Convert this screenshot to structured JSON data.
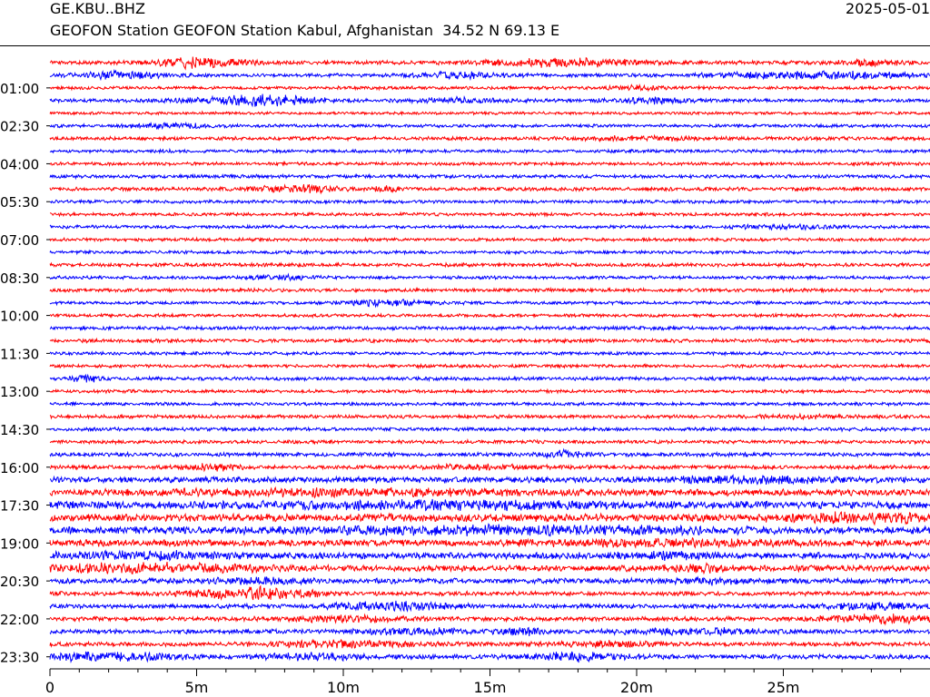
{
  "header": {
    "station_code": "GE.KBU..BHZ",
    "date": "2025-05-01",
    "station_description": "GEOFON Station GEOFON Station Kabul, Afghanistan  34.52 N 69.13 E"
  },
  "chart_data": {
    "type": "line",
    "subtype": "helicorder",
    "x_unit": "minutes",
    "xlim": [
      0,
      30
    ],
    "x_ticks": [
      {
        "value": 0,
        "label": "0"
      },
      {
        "value": 5,
        "label": "5m"
      },
      {
        "value": 10,
        "label": "10m"
      },
      {
        "value": 15,
        "label": "15m"
      },
      {
        "value": 20,
        "label": "20m"
      },
      {
        "value": 25,
        "label": "25m"
      }
    ],
    "x_minor_tick_step": 1,
    "row_interval_minutes": 30,
    "row_count": 48,
    "y_tick_labels": [
      "01:00",
      "02:30",
      "04:00",
      "05:30",
      "07:00",
      "08:30",
      "10:00",
      "11:30",
      "13:00",
      "14:30",
      "16:00",
      "17:30",
      "19:00",
      "20:30",
      "22:00",
      "23:30"
    ],
    "y_tick_every_rows": 3,
    "y_tick_first_row": 2,
    "trace_colors": [
      "#ff0000",
      "#0000ff"
    ],
    "rows_amplitude": [
      {
        "base": 0.55,
        "bursts": [
          [
            5.0,
            1.5,
            1.2
          ],
          [
            17.5,
            2.4,
            1.0
          ],
          [
            28.0,
            1.0,
            0.6
          ]
        ]
      },
      {
        "base": 0.5,
        "bursts": [
          [
            2.5,
            1.5,
            0.8
          ],
          [
            14.0,
            1.5,
            0.7
          ],
          [
            26.0,
            3.0,
            0.9
          ]
        ]
      },
      {
        "base": 0.45,
        "bursts": [
          [
            20.0,
            1.0,
            0.5
          ]
        ]
      },
      {
        "base": 0.5,
        "bursts": [
          [
            7.0,
            2.0,
            1.3
          ],
          [
            14.0,
            1.5,
            0.6
          ],
          [
            20.5,
            1.2,
            0.7
          ]
        ]
      },
      {
        "base": 0.4,
        "bursts": []
      },
      {
        "base": 0.45,
        "bursts": [
          [
            4.0,
            1.5,
            0.5
          ]
        ]
      },
      {
        "base": 0.5,
        "bursts": [
          [
            20.0,
            2.0,
            0.4
          ]
        ]
      },
      {
        "base": 0.45,
        "bursts": []
      },
      {
        "base": 0.45,
        "bursts": []
      },
      {
        "base": 0.5,
        "bursts": []
      },
      {
        "base": 0.5,
        "bursts": [
          [
            9.0,
            1.0,
            0.8
          ],
          [
            7.5,
            1.0,
            0.5
          ],
          [
            11.5,
            0.5,
            0.6
          ]
        ]
      },
      {
        "base": 0.45,
        "bursts": []
      },
      {
        "base": 0.45,
        "bursts": []
      },
      {
        "base": 0.45,
        "bursts": [
          [
            25.0,
            1.5,
            0.4
          ]
        ]
      },
      {
        "base": 0.45,
        "bursts": []
      },
      {
        "base": 0.45,
        "bursts": []
      },
      {
        "base": 0.5,
        "bursts": []
      },
      {
        "base": 0.45,
        "bursts": [
          [
            8.0,
            1.0,
            0.5
          ]
        ]
      },
      {
        "base": 0.5,
        "bursts": []
      },
      {
        "base": 0.45,
        "bursts": [
          [
            11.5,
            1.5,
            0.7
          ]
        ]
      },
      {
        "base": 0.45,
        "bursts": []
      },
      {
        "base": 0.5,
        "bursts": []
      },
      {
        "base": 0.5,
        "bursts": []
      },
      {
        "base": 0.45,
        "bursts": []
      },
      {
        "base": 0.45,
        "bursts": []
      },
      {
        "base": 0.5,
        "bursts": [
          [
            1.2,
            0.5,
            0.8
          ]
        ]
      },
      {
        "base": 0.45,
        "bursts": []
      },
      {
        "base": 0.45,
        "bursts": []
      },
      {
        "base": 0.5,
        "bursts": [
          [
            26.0,
            1.5,
            0.3
          ]
        ]
      },
      {
        "base": 0.5,
        "bursts": []
      },
      {
        "base": 0.5,
        "bursts": []
      },
      {
        "base": 0.55,
        "bursts": [
          [
            17.5,
            0.6,
            1.0
          ]
        ]
      },
      {
        "base": 0.55,
        "bursts": [
          [
            5.5,
            0.8,
            0.8
          ],
          [
            14.5,
            2.0,
            0.4
          ]
        ]
      },
      {
        "base": 0.8,
        "bursts": [
          [
            24.0,
            3.0,
            0.6
          ]
        ]
      },
      {
        "base": 0.9,
        "bursts": [
          [
            10.0,
            6.0,
            0.5
          ]
        ]
      },
      {
        "base": 1.05,
        "bursts": [
          [
            13.0,
            6.0,
            0.6
          ]
        ]
      },
      {
        "base": 1.05,
        "bursts": [
          [
            28.0,
            3.0,
            0.8
          ]
        ]
      },
      {
        "base": 1.05,
        "bursts": [
          [
            16.0,
            6.0,
            0.7
          ]
        ]
      },
      {
        "base": 0.95,
        "bursts": [
          [
            20.5,
            4.0,
            0.4
          ]
        ]
      },
      {
        "base": 0.9,
        "bursts": [
          [
            3.0,
            3.0,
            0.7
          ],
          [
            21.0,
            2.0,
            0.5
          ]
        ]
      },
      {
        "base": 0.85,
        "bursts": [
          [
            3.5,
            3.5,
            0.9
          ],
          [
            22.0,
            1.5,
            0.6
          ]
        ]
      },
      {
        "base": 0.75,
        "bursts": [
          [
            7.0,
            1.5,
            0.5
          ],
          [
            22.5,
            1.0,
            0.7
          ]
        ]
      },
      {
        "base": 0.6,
        "bursts": [
          [
            7.0,
            2.0,
            1.4
          ]
        ]
      },
      {
        "base": 0.6,
        "bursts": [
          [
            11.5,
            2.0,
            1.0
          ],
          [
            28.0,
            1.5,
            0.8
          ]
        ]
      },
      {
        "base": 0.6,
        "bursts": [
          [
            10.0,
            2.0,
            0.6
          ],
          [
            28.5,
            2.0,
            1.0
          ]
        ]
      },
      {
        "base": 0.6,
        "bursts": [
          [
            12.5,
            2.0,
            0.6
          ],
          [
            16.0,
            0.8,
            0.8
          ],
          [
            22.0,
            2.5,
            0.7
          ]
        ]
      },
      {
        "base": 0.6,
        "bursts": [
          [
            10.0,
            2.5,
            0.8
          ],
          [
            19.0,
            2.0,
            0.5
          ]
        ]
      },
      {
        "base": 0.65,
        "bursts": [
          [
            2.0,
            2.5,
            0.8
          ],
          [
            9.0,
            1.5,
            0.7
          ],
          [
            18.0,
            1.5,
            0.9
          ]
        ]
      }
    ]
  }
}
